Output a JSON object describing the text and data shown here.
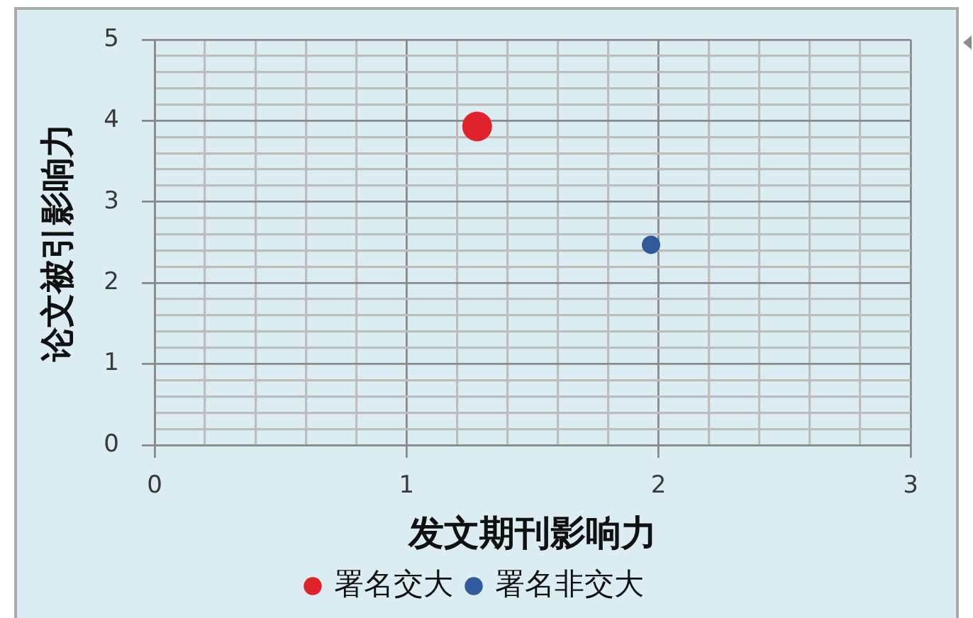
{
  "chart_data": {
    "type": "bubble",
    "xlabel": "发文期刊影响力",
    "ylabel": "论文被引影响力",
    "series": [
      {
        "name": "署名交大",
        "color": "#e0222b",
        "x": [
          1.28
        ],
        "values": [
          3.93
        ],
        "sizes": [
          1
        ]
      },
      {
        "name": "署名非交大",
        "color": "#2f5b9a",
        "x": [
          1.97
        ],
        "values": [
          2.47
        ],
        "sizes": [
          0.38
        ]
      }
    ],
    "xlim": [
      0,
      3
    ],
    "ylim": [
      0,
      5
    ],
    "xticks": [
      0,
      {
        "value": 0.2,
        "label": null
      },
      {
        "value": 0.4,
        "label": null
      },
      {
        "value": 0.6,
        "label": null
      },
      {
        "value": 0.8,
        "label": null
      },
      1,
      {
        "value": 1.2,
        "label": null
      },
      {
        "value": 1.4,
        "label": null
      },
      {
        "value": 1.6,
        "label": null
      },
      {
        "value": 1.8,
        "label": null
      },
      2,
      {
        "value": 2.2,
        "label": null
      },
      {
        "value": 2.4,
        "label": null
      },
      {
        "value": 2.6,
        "label": null
      },
      {
        "value": 2.8,
        "label": null
      },
      3
    ],
    "yticks": [
      0,
      {
        "value": 0.2,
        "label": null
      },
      {
        "value": 0.4,
        "label": null
      },
      {
        "value": 0.6,
        "label": null
      },
      {
        "value": 0.8,
        "label": null
      },
      1,
      {
        "value": 1.2,
        "label": null
      },
      {
        "value": 1.4,
        "label": null
      },
      {
        "value": 1.6,
        "label": null
      },
      {
        "value": 1.8,
        "label": null
      },
      2,
      {
        "value": 2.2,
        "label": null
      },
      {
        "value": 2.4,
        "label": null
      },
      {
        "value": 2.6,
        "label": null
      },
      {
        "value": 2.8,
        "label": null
      },
      3,
      {
        "value": 3.2,
        "label": null
      },
      {
        "value": 3.4,
        "label": null
      },
      {
        "value": 3.6,
        "label": null
      },
      {
        "value": 3.8,
        "label": null
      },
      4,
      {
        "value": 4.2,
        "label": null
      },
      {
        "value": 4.4,
        "label": null
      },
      {
        "value": 4.6,
        "label": null
      },
      {
        "value": 4.8,
        "label": null
      },
      5
    ],
    "grid": true,
    "legend": "bottom",
    "marker": "circle"
  }
}
